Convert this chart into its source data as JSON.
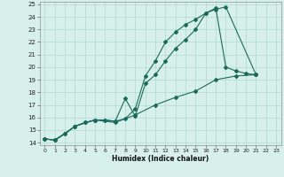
{
  "xlabel": "Humidex (Indice chaleur)",
  "ylabel": "",
  "xlim": [
    -0.5,
    23.5
  ],
  "ylim": [
    13.8,
    25.2
  ],
  "xticks": [
    0,
    1,
    2,
    3,
    4,
    5,
    6,
    7,
    8,
    9,
    10,
    11,
    12,
    13,
    14,
    15,
    16,
    17,
    18,
    19,
    20,
    21,
    22,
    23
  ],
  "yticks": [
    14,
    15,
    16,
    17,
    18,
    19,
    20,
    21,
    22,
    23,
    24,
    25
  ],
  "bg_color": "#d8f0ec",
  "grid_color": "#b0d8d0",
  "line_color": "#1a6b5a",
  "line1_x": [
    0,
    1,
    2,
    3,
    4,
    5,
    6,
    7,
    8,
    9,
    10,
    11,
    12,
    13,
    14,
    15,
    16,
    17,
    18,
    21
  ],
  "line1_y": [
    14.3,
    14.2,
    14.7,
    15.3,
    15.6,
    15.8,
    15.8,
    15.7,
    17.5,
    16.1,
    18.7,
    19.4,
    20.5,
    21.5,
    22.2,
    23.0,
    24.3,
    24.6,
    24.8,
    19.4
  ],
  "line2_x": [
    0,
    1,
    2,
    3,
    4,
    5,
    6,
    7,
    8,
    9,
    10,
    11,
    12,
    13,
    14,
    15,
    16,
    17,
    18,
    19,
    20,
    21
  ],
  "line2_y": [
    14.3,
    14.2,
    14.7,
    15.3,
    15.6,
    15.8,
    15.8,
    15.7,
    15.9,
    16.7,
    19.3,
    20.5,
    22.0,
    22.8,
    23.4,
    23.8,
    24.3,
    24.7,
    20.0,
    19.7,
    19.5,
    19.4
  ],
  "line3_x": [
    0,
    1,
    3,
    5,
    7,
    9,
    11,
    13,
    15,
    17,
    19,
    21
  ],
  "line3_y": [
    14.3,
    14.2,
    15.3,
    15.8,
    15.6,
    16.2,
    17.0,
    17.6,
    18.1,
    19.0,
    19.3,
    19.4
  ]
}
